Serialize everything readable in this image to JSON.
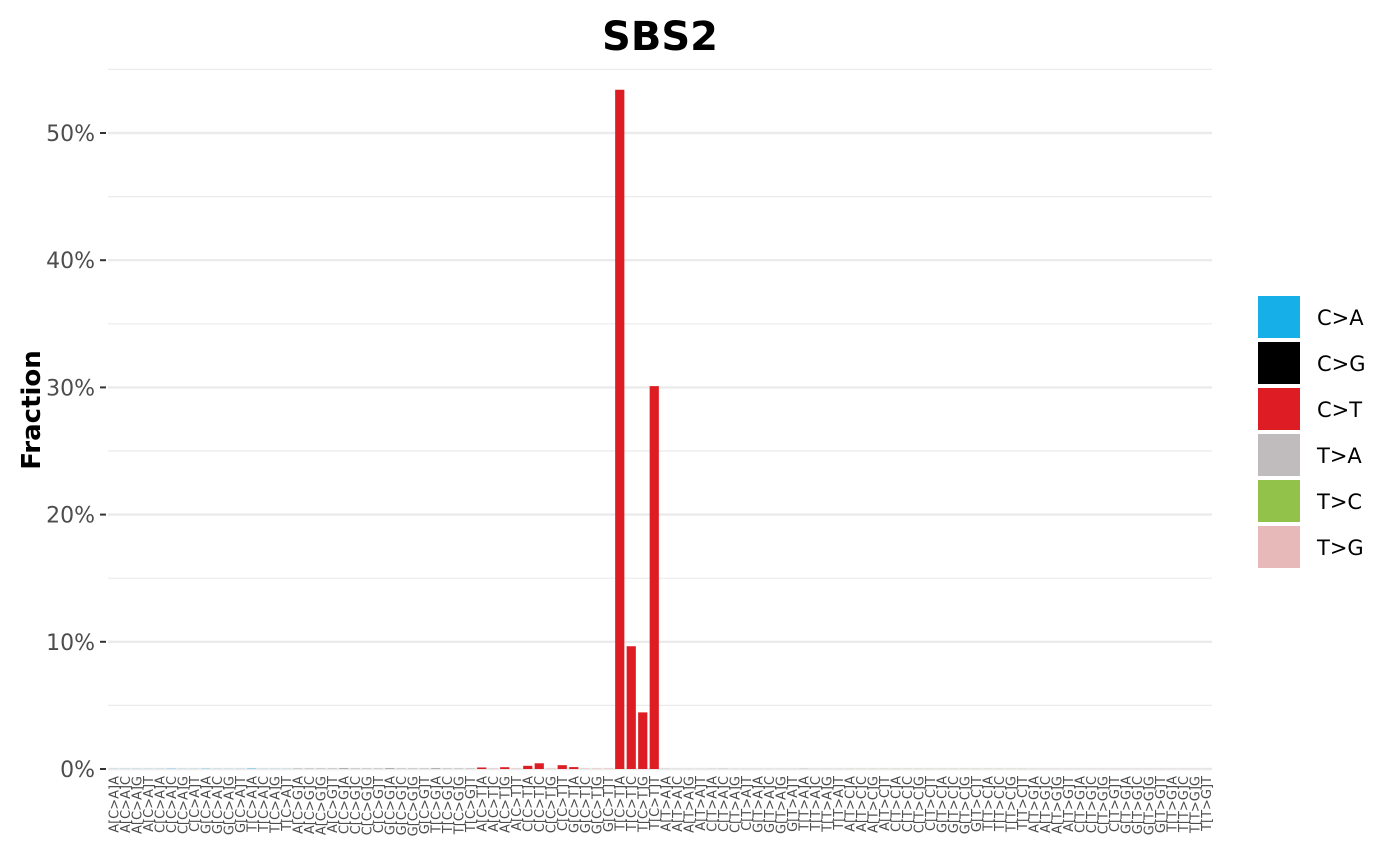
{
  "chart_data": {
    "type": "bar",
    "title": "SBS2",
    "xlabel": "",
    "ylabel": "Fraction",
    "ylim": [
      0,
      0.55
    ],
    "yticks": [
      0,
      0.1,
      0.2,
      0.3,
      0.4,
      0.5
    ],
    "ytick_labels": [
      "0%",
      "10%",
      "20%",
      "30%",
      "40%",
      "50%"
    ],
    "grid": true,
    "legend_position": "right",
    "legend": [
      {
        "name": "C>A",
        "color": "#16AFE8"
      },
      {
        "name": "C>G",
        "color": "#000000"
      },
      {
        "name": "C>T",
        "color": "#DE1C23"
      },
      {
        "name": "T>A",
        "color": "#C0BCBD"
      },
      {
        "name": "T>C",
        "color": "#92C24A"
      },
      {
        "name": "T>G",
        "color": "#E7B9B9"
      }
    ],
    "categories": [
      "A[C>A]A",
      "A[C>A]C",
      "A[C>A]G",
      "A[C>A]T",
      "C[C>A]A",
      "C[C>A]C",
      "C[C>A]G",
      "C[C>A]T",
      "G[C>A]A",
      "G[C>A]C",
      "G[C>A]G",
      "G[C>A]T",
      "T[C>A]A",
      "T[C>A]C",
      "T[C>A]G",
      "T[C>A]T",
      "A[C>G]A",
      "A[C>G]C",
      "A[C>G]G",
      "A[C>G]T",
      "C[C>G]A",
      "C[C>G]C",
      "C[C>G]G",
      "C[C>G]T",
      "G[C>G]A",
      "G[C>G]C",
      "G[C>G]G",
      "G[C>G]T",
      "T[C>G]A",
      "T[C>G]C",
      "T[C>G]G",
      "T[C>G]T",
      "A[C>T]A",
      "A[C>T]C",
      "A[C>T]G",
      "A[C>T]T",
      "C[C>T]A",
      "C[C>T]C",
      "C[C>T]G",
      "C[C>T]T",
      "G[C>T]A",
      "G[C>T]C",
      "G[C>T]G",
      "G[C>T]T",
      "T[C>T]A",
      "T[C>T]C",
      "T[C>T]G",
      "T[C>T]T",
      "A[T>A]A",
      "A[T>A]C",
      "A[T>A]G",
      "A[T>A]T",
      "C[T>A]A",
      "C[T>A]C",
      "C[T>A]G",
      "C[T>A]T",
      "G[T>A]A",
      "G[T>A]C",
      "G[T>A]G",
      "G[T>A]T",
      "T[T>A]A",
      "T[T>A]C",
      "T[T>A]G",
      "T[T>A]T",
      "A[T>C]A",
      "A[T>C]C",
      "A[T>C]G",
      "A[T>C]T",
      "C[T>C]A",
      "C[T>C]C",
      "C[T>C]G",
      "C[T>C]T",
      "G[T>C]A",
      "G[T>C]C",
      "G[T>C]G",
      "G[T>C]T",
      "T[T>C]A",
      "T[T>C]C",
      "T[T>C]G",
      "T[T>C]T",
      "A[T>G]A",
      "A[T>G]C",
      "A[T>G]G",
      "A[T>G]T",
      "C[T>G]A",
      "C[T>G]C",
      "C[T>G]G",
      "C[T>G]T",
      "G[T>G]A",
      "G[T>G]C",
      "G[T>G]G",
      "G[T>G]T",
      "T[T>G]A",
      "T[T>G]C",
      "T[T>G]G",
      "T[T>G]T"
    ],
    "values": [
      0.0001,
      0.0001,
      0.0001,
      0.0001,
      0.0001,
      0.0002,
      0.0001,
      0.0001,
      0.0002,
      0.0001,
      0.0001,
      0.0001,
      0.0003,
      0.0001,
      0.0001,
      0.0001,
      0.0001,
      0.0001,
      0.0001,
      0.0001,
      0.0002,
      0.0001,
      0.0001,
      0.0001,
      0.0002,
      0.0001,
      0.0001,
      0.0001,
      0.0002,
      0.0001,
      0.0001,
      0.0001,
      0.0012,
      0.0001,
      0.0014,
      0.0001,
      0.0025,
      0.0045,
      0.0001,
      0.003,
      0.0015,
      0.0001,
      0.0001,
      0.0001,
      0.534,
      0.0965,
      0.0445,
      0.301,
      0.0002,
      0.0001,
      0.0001,
      0.0001,
      0.0002,
      0.0003,
      0.0001,
      0.0001,
      0.0001,
      0.0001,
      0.0001,
      0.0001,
      0.0003,
      0.0001,
      0.0001,
      0.0001,
      0.0001,
      0.0001,
      0.0001,
      0.0001,
      0.0001,
      0.0001,
      0.0001,
      0.0001,
      0.0001,
      0.0001,
      0.0001,
      0.0001,
      0.0001,
      0.0001,
      0.0001,
      0.0001,
      0.0001,
      0.0001,
      0.0001,
      0.0001,
      0.0001,
      0.0001,
      0.0001,
      0.0001,
      0.0001,
      0.0001,
      0.0001,
      0.0001,
      0.0001,
      0.0001,
      0.0001,
      0.0001
    ]
  }
}
